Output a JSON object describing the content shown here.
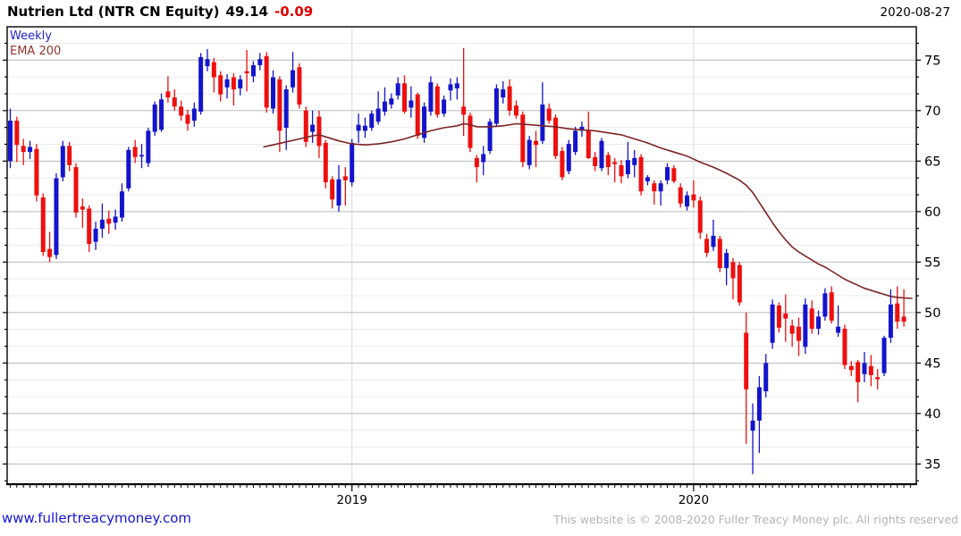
{
  "header": {
    "instrument": "Nutrien Ltd (NTR CN Equity)",
    "last_price": "49.14",
    "change": "-0.09",
    "date": "2020-08-27"
  },
  "legend": {
    "timeframe": "Weekly",
    "indicator": "EMA 200"
  },
  "footer": {
    "website": "www.fullertreacymoney.com",
    "copyright": "This website is © 2008-2020 Fuller Treacy Money plc. All rights reserved"
  },
  "chart_data": {
    "type": "candlestick",
    "title": "Nutrien Ltd (NTR CN Equity)",
    "timeframe": "Weekly",
    "overlay": "EMA 200",
    "grid": "minor horizontal lines every 1.667, darker lines every 5, vertical lines at year starts",
    "y_axis": {
      "side": "right",
      "top_price": 78.3,
      "bottom_price": 33.0,
      "label_step": 5,
      "minor_step": 1.6667,
      "labels": [
        75,
        70,
        65,
        60,
        55,
        50,
        45,
        40,
        35
      ]
    },
    "x_axis": {
      "unit": "week",
      "total_weeks": 137,
      "year_labels": [
        {
          "label": "2019",
          "week": 52
        },
        {
          "label": "2020",
          "week": 104
        }
      ]
    },
    "colors": {
      "up": "#1414cc",
      "down": "#ee0f0f",
      "ema": "#7b2424",
      "grid_minor": "#ebebeb",
      "grid_major": "#b9b9b9",
      "grid_year": "#d8d8d8",
      "frame": "#000000"
    },
    "candles_ohlc": [
      [
        65.0,
        70.2,
        64.3,
        69.0
      ],
      [
        69.0,
        69.4,
        64.9,
        66.6
      ],
      [
        66.5,
        67.2,
        64.6,
        65.9
      ],
      [
        65.9,
        67.0,
        65.2,
        66.4
      ],
      [
        66.2,
        66.7,
        61.0,
        61.6
      ],
      [
        61.4,
        61.8,
        55.6,
        56.0
      ],
      [
        56.3,
        58.0,
        55.0,
        55.5
      ],
      [
        55.7,
        63.8,
        55.3,
        63.3
      ],
      [
        63.4,
        67.0,
        63.0,
        66.5
      ],
      [
        66.5,
        66.9,
        64.0,
        64.6
      ],
      [
        64.4,
        64.8,
        59.4,
        59.9
      ],
      [
        60.5,
        61.3,
        58.4,
        60.2
      ],
      [
        60.3,
        60.6,
        56.0,
        56.8
      ],
      [
        57.0,
        59.0,
        56.2,
        58.3
      ],
      [
        58.3,
        60.8,
        57.4,
        59.2
      ],
      [
        59.3,
        60.1,
        57.8,
        58.8
      ],
      [
        58.9,
        60.2,
        58.2,
        59.5
      ],
      [
        59.4,
        62.8,
        59.0,
        62.0
      ],
      [
        62.3,
        66.4,
        62.0,
        66.1
      ],
      [
        66.4,
        67.1,
        64.8,
        65.4
      ],
      [
        65.5,
        66.7,
        64.3,
        65.6
      ],
      [
        64.8,
        68.3,
        64.4,
        68.0
      ],
      [
        67.9,
        70.9,
        67.5,
        70.6
      ],
      [
        68.1,
        71.7,
        67.9,
        71.1
      ],
      [
        71.9,
        73.4,
        70.8,
        71.3
      ],
      [
        71.3,
        72.1,
        70.0,
        70.4
      ],
      [
        70.4,
        71.0,
        69.0,
        69.5
      ],
      [
        69.6,
        70.1,
        68.0,
        68.7
      ],
      [
        69.0,
        70.8,
        68.4,
        70.2
      ],
      [
        69.9,
        75.7,
        69.6,
        75.3
      ],
      [
        74.4,
        76.1,
        73.9,
        75.1
      ],
      [
        74.8,
        75.2,
        71.8,
        73.3
      ],
      [
        73.5,
        73.9,
        70.9,
        71.6
      ],
      [
        72.3,
        73.6,
        71.2,
        73.1
      ],
      [
        73.3,
        73.7,
        70.5,
        72.1
      ],
      [
        72.2,
        73.5,
        71.5,
        73.1
      ],
      [
        73.9,
        76.0,
        71.9,
        73.7
      ],
      [
        73.4,
        74.9,
        72.8,
        74.5
      ],
      [
        74.5,
        75.7,
        74.0,
        75.1
      ],
      [
        75.4,
        75.8,
        69.8,
        70.3
      ],
      [
        70.2,
        74.0,
        69.7,
        73.3
      ],
      [
        73.1,
        73.4,
        65.9,
        68.0
      ],
      [
        68.3,
        72.5,
        66.1,
        72.1
      ],
      [
        72.3,
        75.8,
        71.8,
        74.0
      ],
      [
        74.3,
        74.7,
        70.2,
        70.6
      ],
      [
        70.0,
        70.4,
        66.4,
        66.9
      ],
      [
        67.9,
        70.0,
        66.8,
        68.6
      ],
      [
        69.4,
        70.0,
        65.3,
        66.5
      ],
      [
        66.8,
        67.1,
        62.3,
        62.9
      ],
      [
        63.2,
        63.5,
        60.3,
        61.2
      ],
      [
        60.6,
        64.6,
        60.0,
        63.2
      ],
      [
        63.5,
        64.4,
        60.6,
        63.1
      ],
      [
        62.9,
        67.2,
        62.5,
        66.8
      ],
      [
        68.0,
        69.7,
        66.8,
        68.6
      ],
      [
        68.0,
        69.3,
        67.3,
        68.5
      ],
      [
        68.3,
        70.0,
        68.0,
        69.7
      ],
      [
        68.9,
        71.9,
        68.6,
        70.2
      ],
      [
        69.9,
        72.3,
        69.5,
        70.9
      ],
      [
        70.6,
        71.7,
        70.2,
        71.2
      ],
      [
        71.5,
        73.3,
        71.1,
        72.7
      ],
      [
        72.7,
        73.5,
        69.7,
        69.9
      ],
      [
        70.3,
        72.4,
        69.3,
        71.0
      ],
      [
        71.6,
        71.8,
        67.2,
        67.5
      ],
      [
        67.3,
        70.8,
        66.8,
        70.4
      ],
      [
        69.9,
        73.4,
        69.5,
        72.8
      ],
      [
        72.4,
        72.7,
        69.3,
        69.6
      ],
      [
        69.7,
        71.5,
        69.4,
        71.1
      ],
      [
        72.0,
        73.2,
        71.0,
        72.6
      ],
      [
        72.2,
        73.3,
        71.1,
        72.7
      ],
      [
        70.4,
        76.2,
        67.5,
        69.6
      ],
      [
        69.5,
        69.8,
        65.9,
        66.3
      ],
      [
        65.3,
        65.6,
        62.9,
        64.4
      ],
      [
        64.9,
        66.5,
        63.6,
        65.7
      ],
      [
        66.0,
        69.2,
        65.7,
        68.9
      ],
      [
        68.7,
        72.6,
        68.4,
        72.2
      ],
      [
        71.3,
        72.9,
        70.7,
        72.1
      ],
      [
        72.4,
        73.1,
        69.5,
        70.0
      ],
      [
        70.5,
        71.0,
        69.2,
        69.5
      ],
      [
        69.6,
        69.9,
        64.4,
        64.9
      ],
      [
        64.6,
        67.5,
        64.2,
        67.1
      ],
      [
        67.0,
        68.0,
        64.4,
        66.6
      ],
      [
        67.0,
        72.8,
        66.7,
        70.6
      ],
      [
        70.2,
        70.7,
        68.7,
        69.0
      ],
      [
        69.3,
        69.6,
        65.2,
        65.5
      ],
      [
        66.0,
        66.4,
        63.1,
        63.4
      ],
      [
        64.0,
        67.1,
        63.7,
        66.7
      ],
      [
        65.9,
        68.4,
        65.6,
        68.0
      ],
      [
        68.0,
        68.9,
        67.4,
        68.4
      ],
      [
        68.0,
        69.9,
        65.2,
        65.3
      ],
      [
        65.4,
        65.9,
        64.0,
        64.5
      ],
      [
        64.3,
        67.3,
        64.0,
        67.0
      ],
      [
        65.6,
        65.9,
        63.6,
        64.4
      ],
      [
        64.9,
        65.3,
        62.9,
        64.7
      ],
      [
        64.6,
        65.1,
        62.8,
        63.5
      ],
      [
        63.7,
        66.9,
        63.3,
        65.1
      ],
      [
        64.6,
        66.1,
        63.4,
        65.3
      ],
      [
        65.4,
        65.7,
        61.6,
        62.0
      ],
      [
        63.0,
        63.6,
        62.6,
        63.4
      ],
      [
        62.8,
        63.1,
        60.7,
        62.0
      ],
      [
        62.0,
        63.1,
        60.6,
        62.8
      ],
      [
        63.1,
        64.8,
        62.7,
        64.4
      ],
      [
        64.3,
        64.6,
        62.8,
        63.0
      ],
      [
        62.4,
        62.8,
        60.4,
        60.8
      ],
      [
        60.5,
        62.0,
        60.1,
        61.6
      ],
      [
        61.7,
        63.1,
        60.4,
        61.1
      ],
      [
        61.1,
        61.5,
        57.3,
        57.9
      ],
      [
        57.3,
        57.8,
        55.5,
        55.9
      ],
      [
        56.5,
        59.2,
        56.1,
        57.6
      ],
      [
        57.3,
        57.6,
        54.0,
        54.4
      ],
      [
        54.4,
        56.3,
        52.7,
        55.9
      ],
      [
        55.0,
        55.4,
        51.3,
        53.4
      ],
      [
        54.7,
        55.0,
        50.7,
        51.0
      ],
      [
        48.0,
        50.0,
        37.0,
        42.4
      ],
      [
        38.3,
        41.0,
        34.0,
        39.3
      ],
      [
        39.3,
        43.7,
        36.1,
        42.6
      ],
      [
        42.2,
        45.9,
        41.6,
        45.0
      ],
      [
        47.0,
        51.3,
        46.4,
        50.8
      ],
      [
        50.7,
        51.0,
        48.0,
        48.5
      ],
      [
        49.9,
        51.8,
        47.1,
        49.4
      ],
      [
        48.7,
        49.3,
        46.6,
        47.9
      ],
      [
        48.6,
        49.5,
        45.7,
        47.2
      ],
      [
        46.6,
        51.4,
        45.9,
        50.8
      ],
      [
        50.4,
        51.2,
        47.9,
        48.4
      ],
      [
        48.4,
        50.2,
        47.8,
        49.6
      ],
      [
        49.6,
        52.4,
        49.2,
        51.9
      ],
      [
        52.0,
        52.6,
        48.9,
        49.2
      ],
      [
        48.0,
        50.7,
        47.6,
        48.6
      ],
      [
        48.4,
        48.8,
        44.4,
        44.8
      ],
      [
        44.7,
        45.2,
        43.7,
        44.3
      ],
      [
        45.1,
        45.3,
        41.1,
        43.1
      ],
      [
        43.9,
        46.1,
        43.1,
        45.0
      ],
      [
        44.7,
        45.8,
        42.7,
        43.8
      ],
      [
        43.6,
        44.4,
        42.4,
        43.4
      ],
      [
        44.0,
        47.7,
        43.7,
        47.5
      ],
      [
        47.5,
        52.3,
        47.0,
        50.8
      ],
      [
        50.9,
        52.6,
        48.4,
        49.1
      ],
      [
        49.6,
        52.3,
        48.6,
        49.1
      ]
    ],
    "ema_200": [
      [
        38.5,
        66.4
      ],
      [
        40,
        66.6
      ],
      [
        42,
        66.9
      ],
      [
        44,
        67.2
      ],
      [
        46,
        67.5
      ],
      [
        47,
        67.6
      ],
      [
        48,
        67.4
      ],
      [
        50,
        67.0
      ],
      [
        52,
        66.7
      ],
      [
        54,
        66.6
      ],
      [
        56,
        66.7
      ],
      [
        58,
        66.9
      ],
      [
        60,
        67.2
      ],
      [
        62,
        67.6
      ],
      [
        64,
        68.0
      ],
      [
        66,
        68.3
      ],
      [
        68,
        68.5
      ],
      [
        69,
        68.7
      ],
      [
        70,
        68.6
      ],
      [
        71,
        68.4
      ],
      [
        73,
        68.4
      ],
      [
        75,
        68.5
      ],
      [
        77,
        68.7
      ],
      [
        79,
        68.6
      ],
      [
        81,
        68.5
      ],
      [
        83,
        68.4
      ],
      [
        85,
        68.2
      ],
      [
        87,
        68.1
      ],
      [
        89,
        68.0
      ],
      [
        91,
        67.8
      ],
      [
        93,
        67.6
      ],
      [
        95,
        67.2
      ],
      [
        97,
        66.8
      ],
      [
        99,
        66.3
      ],
      [
        101,
        65.9
      ],
      [
        103,
        65.5
      ],
      [
        105,
        64.9
      ],
      [
        107,
        64.4
      ],
      [
        109,
        63.8
      ],
      [
        111,
        63.1
      ],
      [
        112,
        62.6
      ],
      [
        113,
        61.9
      ],
      [
        114,
        60.9
      ],
      [
        115,
        59.9
      ],
      [
        116,
        58.9
      ],
      [
        117,
        58.0
      ],
      [
        118,
        57.2
      ],
      [
        119,
        56.5
      ],
      [
        120,
        56.0
      ],
      [
        121,
        55.6
      ],
      [
        122,
        55.2
      ],
      [
        123,
        54.8
      ],
      [
        124,
        54.5
      ],
      [
        125,
        54.1
      ],
      [
        126,
        53.7
      ],
      [
        127,
        53.3
      ],
      [
        128,
        53.0
      ],
      [
        129,
        52.7
      ],
      [
        130,
        52.4
      ],
      [
        131,
        52.2
      ],
      [
        132,
        52.0
      ],
      [
        133,
        51.8
      ],
      [
        134,
        51.6
      ],
      [
        135,
        51.5
      ],
      [
        136,
        51.45
      ],
      [
        137.3,
        51.4
      ]
    ]
  }
}
